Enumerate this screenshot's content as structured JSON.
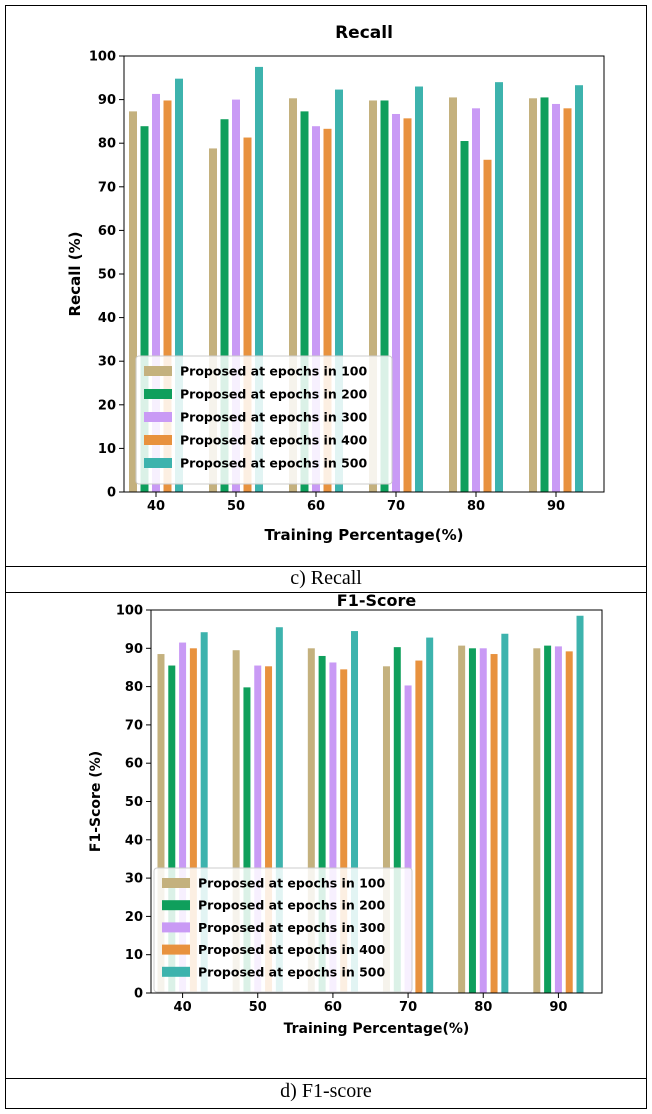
{
  "colors": [
    "#c4b17e",
    "#0f9f5c",
    "#c99af5",
    "#e8923e",
    "#3db3ad"
  ],
  "captions": {
    "c": "c)      Recall",
    "d": "d) F1-score"
  },
  "chart_data": [
    {
      "type": "bar",
      "title": "Recall",
      "xlabel": "Training Percentage(%)",
      "ylabel": "Recall (%)",
      "ylim": [
        0,
        100
      ],
      "yticks": [
        "0",
        "10",
        "20",
        "30",
        "40",
        "50",
        "60",
        "70",
        "80",
        "90",
        "100"
      ],
      "categories": [
        "40",
        "50",
        "60",
        "70",
        "80",
        "90"
      ],
      "legend_position": "lower-left",
      "grid": false,
      "series": [
        {
          "name": "Proposed at epochs in 100",
          "values": [
            87.3,
            78.8,
            90.3,
            89.8,
            90.5,
            90.3
          ]
        },
        {
          "name": "Proposed at epochs in 200",
          "values": [
            83.9,
            85.5,
            87.3,
            89.8,
            80.5,
            90.5
          ]
        },
        {
          "name": "Proposed at epochs in 300",
          "values": [
            91.3,
            90.0,
            83.9,
            86.7,
            88.0,
            89.0
          ]
        },
        {
          "name": "Proposed at epochs in 400",
          "values": [
            89.8,
            81.3,
            83.3,
            85.7,
            76.2,
            88.0
          ]
        },
        {
          "name": "Proposed at epochs in 500",
          "values": [
            94.8,
            97.5,
            92.3,
            93.0,
            94.0,
            93.3
          ]
        }
      ]
    },
    {
      "type": "bar",
      "title": "F1-Score",
      "xlabel": "Training Percentage(%)",
      "ylabel": "F1-Score (%)",
      "ylim": [
        0,
        100
      ],
      "yticks": [
        "0",
        "10",
        "20",
        "30",
        "40",
        "50",
        "60",
        "70",
        "80",
        "90",
        "100"
      ],
      "categories": [
        "40",
        "50",
        "60",
        "70",
        "80",
        "90"
      ],
      "legend_position": "lower-left",
      "grid": false,
      "series": [
        {
          "name": "Proposed at epochs in 100",
          "values": [
            88.5,
            89.5,
            90.0,
            85.3,
            90.7,
            90.0
          ]
        },
        {
          "name": "Proposed at epochs in 200",
          "values": [
            85.5,
            79.8,
            88.0,
            90.3,
            90.0,
            90.7
          ]
        },
        {
          "name": "Proposed at epochs in 300",
          "values": [
            91.5,
            85.5,
            86.3,
            80.3,
            90.0,
            90.5
          ]
        },
        {
          "name": "Proposed at epochs in 400",
          "values": [
            90.0,
            85.3,
            84.5,
            86.8,
            88.5,
            89.2
          ]
        },
        {
          "name": "Proposed at epochs in 500",
          "values": [
            94.2,
            95.5,
            94.5,
            92.8,
            93.8,
            98.5
          ]
        }
      ]
    }
  ]
}
